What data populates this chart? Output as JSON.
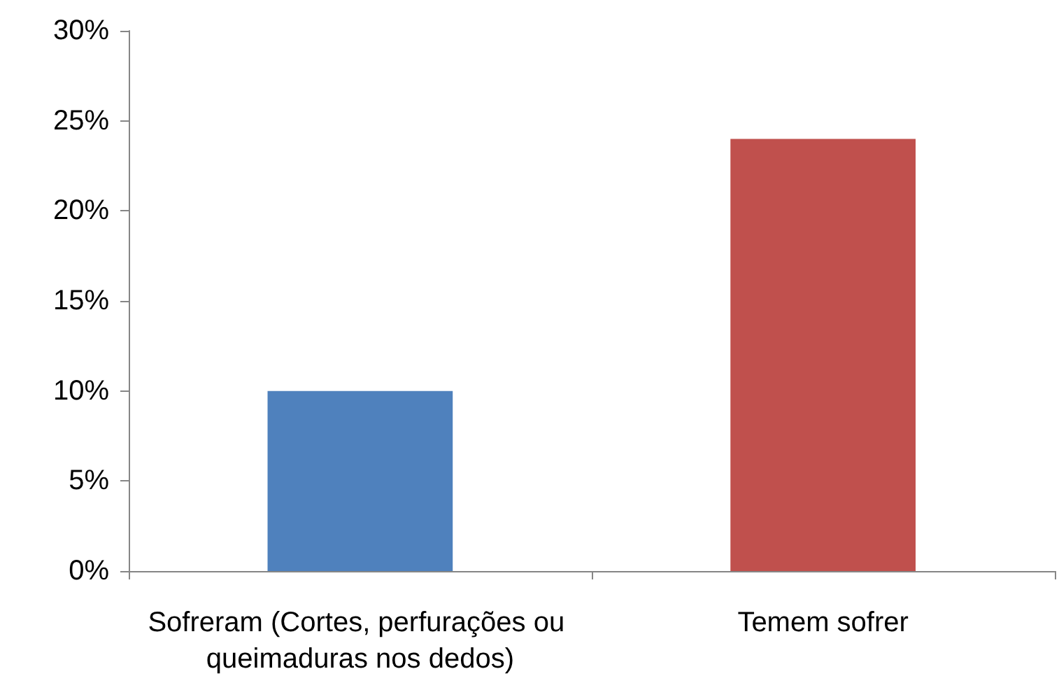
{
  "chart_data": {
    "type": "bar",
    "categories": [
      "Sofreram (Cortes, perfurações ou queimaduras nos dedos)",
      "Temem sofrer"
    ],
    "values": [
      10,
      24
    ],
    "colors": [
      "#4f81bd",
      "#c0504d"
    ],
    "ylim": [
      0,
      30
    ],
    "yticks": [
      {
        "value": 0,
        "label": "0%"
      },
      {
        "value": 5,
        "label": "5%"
      },
      {
        "value": 10,
        "label": "10%"
      },
      {
        "value": 15,
        "label": "15%"
      },
      {
        "value": 20,
        "label": "20%"
      },
      {
        "value": 25,
        "label": "25%"
      },
      {
        "value": 30,
        "label": "30%"
      }
    ],
    "grid": false
  }
}
